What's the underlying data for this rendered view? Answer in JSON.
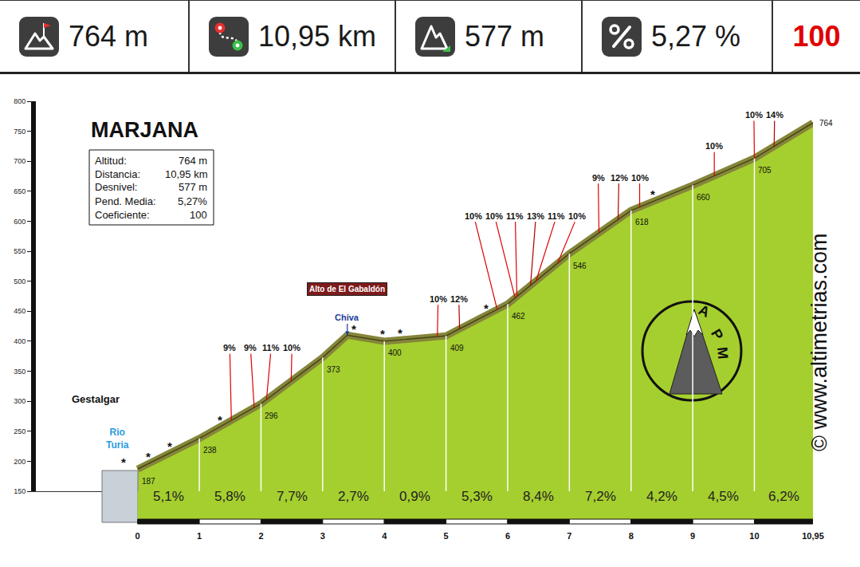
{
  "chart_data": {
    "type": "area",
    "title": "MARJANA",
    "header": [
      "764 m",
      "10,95 km",
      "577 m",
      "5,27 %",
      "100"
    ],
    "info": [
      {
        "label": "Altitud:",
        "value": "764 m"
      },
      {
        "label": "Distancia:",
        "value": "10,95 km"
      },
      {
        "label": "Desnivel:",
        "value": "577 m"
      },
      {
        "label": "Pend. Media:",
        "value": "5,27%"
      },
      {
        "label": "Coeficiente:",
        "value": "100"
      }
    ],
    "x": [
      0,
      1,
      2,
      3,
      3.4,
      4,
      5,
      6,
      7,
      8,
      9,
      10,
      10.95
    ],
    "values": [
      187,
      238,
      296,
      373,
      410,
      400,
      409,
      462,
      546,
      618,
      660,
      705,
      764
    ],
    "color": "#a5cf2e",
    "altitude_labels": {
      "x": [
        0,
        1,
        2,
        3,
        4,
        5,
        6,
        7,
        8,
        9,
        10,
        10.95
      ],
      "values": [
        187,
        238,
        296,
        373,
        400,
        409,
        462,
        546,
        618,
        660,
        705,
        764
      ]
    },
    "segments": {
      "starts": [
        0,
        1,
        2,
        3,
        4,
        5,
        6,
        7,
        8,
        9,
        10
      ],
      "ends": [
        1,
        2,
        3,
        4,
        5,
        6,
        7,
        8,
        9,
        10,
        10.95
      ],
      "values": [
        5.1,
        5.8,
        7.7,
        2.7,
        0.9,
        5.3,
        8.4,
        7.2,
        4.2,
        4.5,
        6.2
      ],
      "value_labels": [
        "5,1%",
        "5,8%",
        "7,7%",
        "2,7%",
        "0,9%",
        "5,3%",
        "8,4%",
        "7,2%",
        "4,2%",
        "4,5%",
        "6,2%"
      ]
    },
    "gradient_marks": {
      "x": [
        1.52,
        1.89,
        2.09,
        2.49,
        4.86,
        5.22,
        5.83,
        6.12,
        6.15,
        6.37,
        6.46,
        6.81,
        7.48,
        7.79,
        8.14,
        9.35,
        10.0,
        10.32
      ],
      "values": [
        9,
        9,
        11,
        10,
        10,
        12,
        10,
        10,
        11,
        13,
        11,
        10,
        9,
        12,
        10,
        10,
        10,
        14
      ],
      "value_labels": [
        "9%",
        "9%",
        "11%",
        "10%",
        "10%",
        "12%",
        "10%",
        "10%",
        "11%",
        "13%",
        "11%",
        "10%",
        "9%",
        "12%",
        "10%",
        "10%",
        "10%",
        "14%"
      ]
    },
    "summit": {
      "x": 3.4,
      "label": "Alto de El Gabaldón",
      "road": "Chiva"
    },
    "junctions": {
      "x": [
        -0.23,
        0.17,
        0.52,
        1.33,
        3.5,
        3.97,
        4.26,
        5.65,
        8.35
      ],
      "label": "*"
    },
    "places": {
      "start": "Gestalgar",
      "river": "Rio Turia"
    },
    "logo": "APM",
    "watermark": "© www.altimetrias.com",
    "xlim": [
      -1.65,
      10.95
    ],
    "ylim": [
      150,
      800
    ],
    "xticks": [
      0,
      1,
      2,
      3,
      4,
      5,
      6,
      7,
      8,
      9,
      10,
      {
        "value": 10.95,
        "label": "10,95"
      }
    ],
    "yticks": [
      150,
      200,
      250,
      300,
      350,
      400,
      450,
      500,
      550,
      600,
      650,
      700,
      750,
      800
    ]
  }
}
